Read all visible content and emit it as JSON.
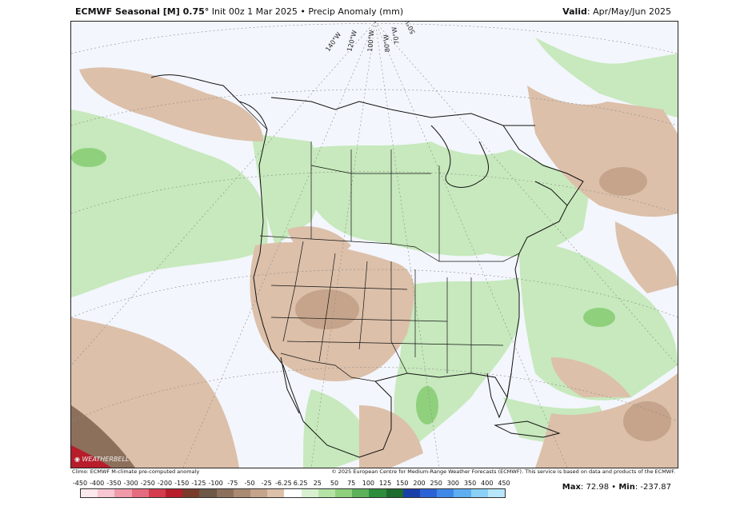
{
  "header": {
    "model": "ECMWF Seasonal [M] 0.75°",
    "init": " Init 00z 1 Mar 2025 • Precip Anomaly (mm)",
    "valid_label": "Valid",
    "valid_value": ": Apr/May/Jun 2025"
  },
  "map": {
    "lon_labels": [
      "140°W",
      "120°W",
      "100°W",
      "80°W",
      "70°W",
      "50°W"
    ],
    "logo_text": "WEATHERBELL"
  },
  "credits": {
    "left": "Climo: ECMWF M-climate pre-computed anomaly",
    "right": "© 2025 European Centre for Medium-Range Weather Forecasts (ECMWF). This service is based on data and products of the ECMWF."
  },
  "colorbar": {
    "ticks": [
      "-450",
      "-400",
      "-350",
      "-300",
      "-250",
      "-200",
      "-150",
      "-125",
      "-100",
      "-75",
      "-50",
      "-25",
      "-6.25",
      "6.25",
      "25",
      "50",
      "75",
      "100",
      "125",
      "150",
      "200",
      "250",
      "300",
      "350",
      "400",
      "450"
    ],
    "colors": [
      "#fde8ee",
      "#f8c7d1",
      "#f09aaa",
      "#e46c7e",
      "#d43c4e",
      "#b71d2a",
      "#7a3a2a",
      "#6e5848",
      "#8d705c",
      "#a98a72",
      "#c5a48b",
      "#dcc0aa",
      "#ffffff",
      "#d8f0d0",
      "#b5e3a6",
      "#8fd07d",
      "#5db15a",
      "#2e8d3c",
      "#1f6c2e",
      "#1b3fa8",
      "#2b63d6",
      "#3e88e8",
      "#5faef2",
      "#8ad0f7",
      "#b8e6fb"
    ]
  },
  "stats": {
    "max_label": "Max",
    "max_value": ": 72.98 • ",
    "min_label": "Min",
    "min_value": ": -237.87"
  }
}
